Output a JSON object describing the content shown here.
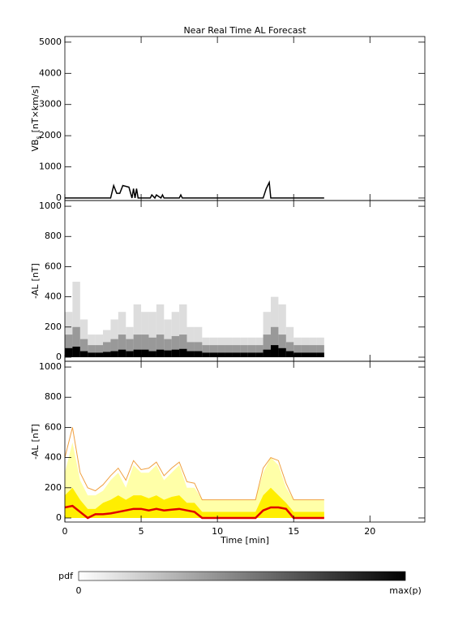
{
  "chart_data": [
    {
      "type": "line",
      "title": "Near Real Time AL Forecast",
      "ylabel": {
        "main": "VB",
        "sub": "s",
        "unit": "[nT×km/s]"
      },
      "xlim": [
        0,
        23.6
      ],
      "ylim": [
        -80,
        5180
      ],
      "yticks": [
        0,
        1000,
        2000,
        3000,
        4000,
        5000
      ],
      "x": [
        0,
        3.0,
        3.2,
        3.4,
        3.6,
        3.8,
        4.2,
        4.4,
        4.5,
        4.6,
        4.7,
        4.8,
        5.0,
        5.6,
        5.7,
        5.9,
        6.0,
        6.3,
        6.4,
        6.5,
        7.5,
        7.6,
        7.7,
        13.0,
        13.2,
        13.4,
        13.5,
        17
      ],
      "series": [
        {
          "color": "#000000",
          "values": [
            0,
            0,
            400,
            150,
            150,
            400,
            350,
            0,
            300,
            0,
            300,
            0,
            0,
            0,
            100,
            0,
            100,
            0,
            100,
            0,
            0,
            100,
            0,
            0,
            300,
            500,
            0,
            0
          ]
        }
      ]
    },
    {
      "type": "histogram",
      "ylabel": {
        "main": "-AL",
        "unit": "[nT]"
      },
      "xlim": [
        0,
        23.6
      ],
      "ylim": [
        -27,
        1038
      ],
      "yticks": [
        0,
        200,
        400,
        600,
        800,
        1000
      ],
      "bins": [
        0,
        0.5,
        1,
        1.5,
        2,
        2.5,
        3,
        3.5,
        4,
        4.5,
        5,
        5.5,
        6,
        6.5,
        7,
        7.5,
        8,
        8.5,
        9,
        9.5,
        10,
        10.5,
        11,
        11.5,
        12,
        12.5,
        13,
        13.5,
        14,
        14.5,
        15,
        15.5,
        16,
        16.5,
        17
      ],
      "series": [
        {
          "color": "#dddddd",
          "values": [
            300,
            500,
            250,
            150,
            150,
            180,
            250,
            300,
            200,
            350,
            300,
            300,
            350,
            250,
            300,
            350,
            200,
            200,
            130,
            130,
            130,
            130,
            130,
            130,
            130,
            130,
            300,
            400,
            350,
            200,
            130,
            130,
            130,
            130
          ]
        },
        {
          "color": "#999999",
          "values": [
            150,
            200,
            120,
            80,
            80,
            100,
            120,
            150,
            120,
            150,
            150,
            130,
            150,
            120,
            140,
            150,
            100,
            100,
            80,
            80,
            80,
            80,
            80,
            80,
            80,
            80,
            150,
            200,
            150,
            100,
            80,
            80,
            80,
            80
          ]
        },
        {
          "color": "#000000",
          "values": [
            60,
            70,
            40,
            30,
            30,
            35,
            40,
            50,
            40,
            50,
            50,
            40,
            50,
            45,
            50,
            55,
            40,
            40,
            30,
            30,
            30,
            30,
            30,
            30,
            30,
            30,
            50,
            80,
            60,
            40,
            30,
            30,
            30,
            30
          ]
        }
      ]
    },
    {
      "type": "area",
      "ylabel": {
        "main": "-AL",
        "unit": "[nT]"
      },
      "xlabel": "Time [min]",
      "xlim": [
        0,
        23.6
      ],
      "ylim": [
        -27,
        1038
      ],
      "yticks": [
        0,
        200,
        400,
        600,
        800,
        1000
      ],
      "xticks": [
        0,
        5,
        10,
        15,
        20
      ],
      "x": [
        0,
        0.5,
        1,
        1.5,
        2,
        2.5,
        3,
        3.5,
        4,
        4.5,
        5,
        5.5,
        6,
        6.5,
        7,
        7.5,
        8,
        8.5,
        9,
        9.5,
        10,
        10.5,
        11,
        11.5,
        12,
        12.5,
        13,
        13.5,
        14,
        14.5,
        15,
        15.5,
        16,
        16.5,
        17
      ],
      "series": [
        {
          "kind": "fill",
          "color": "#ffffa8",
          "values": [
            300,
            500,
            250,
            150,
            150,
            180,
            250,
            300,
            200,
            350,
            300,
            300,
            350,
            250,
            300,
            350,
            200,
            200,
            120,
            120,
            120,
            120,
            120,
            120,
            120,
            120,
            300,
            400,
            350,
            200,
            120,
            120,
            120,
            120,
            120
          ]
        },
        {
          "kind": "fill",
          "color": "#ffee00",
          "values": [
            150,
            200,
            120,
            60,
            60,
            100,
            120,
            150,
            120,
            150,
            150,
            130,
            150,
            120,
            140,
            150,
            100,
            100,
            40,
            40,
            40,
            40,
            40,
            40,
            40,
            40,
            150,
            200,
            150,
            100,
            40,
            40,
            40,
            40,
            40
          ]
        },
        {
          "kind": "line",
          "color": "#f0a040",
          "values": [
            400,
            600,
            300,
            200,
            180,
            220,
            280,
            330,
            250,
            380,
            320,
            330,
            370,
            280,
            330,
            370,
            240,
            230,
            120,
            120,
            120,
            120,
            120,
            120,
            120,
            120,
            330,
            400,
            380,
            230,
            120,
            120,
            120,
            120,
            120
          ]
        },
        {
          "kind": "line",
          "color": "#e00000",
          "values": [
            70,
            80,
            40,
            0,
            25,
            25,
            30,
            40,
            50,
            60,
            60,
            50,
            60,
            50,
            55,
            60,
            50,
            40,
            0,
            0,
            0,
            0,
            0,
            0,
            0,
            0,
            50,
            70,
            70,
            60,
            0,
            0,
            0,
            0,
            0
          ]
        }
      ]
    }
  ],
  "colorbar": {
    "label": "pdf",
    "min_label": "0",
    "max_label": "max(p)"
  }
}
